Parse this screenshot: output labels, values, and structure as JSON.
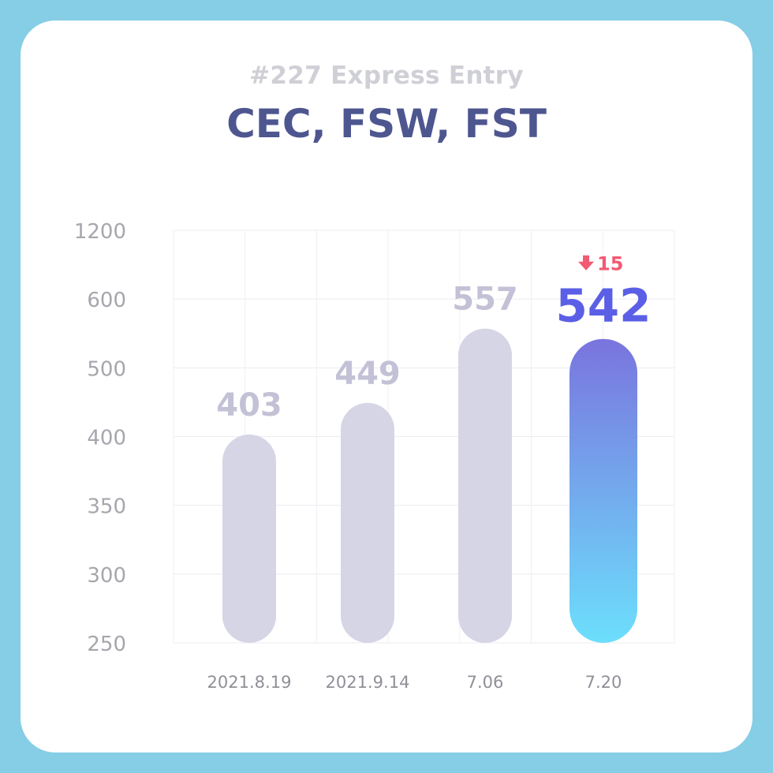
{
  "header": {
    "subtitle": "#227 Express Entry",
    "title": "CEC, FSW, FST"
  },
  "colors": {
    "background": "#86cde6",
    "bar_default": "#d6d5e5",
    "bar_highlight_top": "#7a74de",
    "bar_highlight_bottom": "#6cdffc",
    "delta_down": "#f25a72",
    "title": "#4e5690"
  },
  "chart_data": {
    "type": "bar",
    "y_ticks": [
      "1200",
      "600",
      "500",
      "400",
      "350",
      "300",
      "250"
    ],
    "categories": [
      "2021.8.19",
      "2021.9.14",
      "7.06",
      "7.20"
    ],
    "values": [
      403,
      449,
      557,
      542
    ],
    "labels": [
      "403",
      "449",
      "557",
      "542"
    ],
    "highlight_index": 3,
    "delta": {
      "index": 3,
      "direction": "down",
      "value": "15",
      "icon": "arrow-down-icon"
    },
    "grid": true,
    "xlabel": "",
    "ylabel": ""
  }
}
